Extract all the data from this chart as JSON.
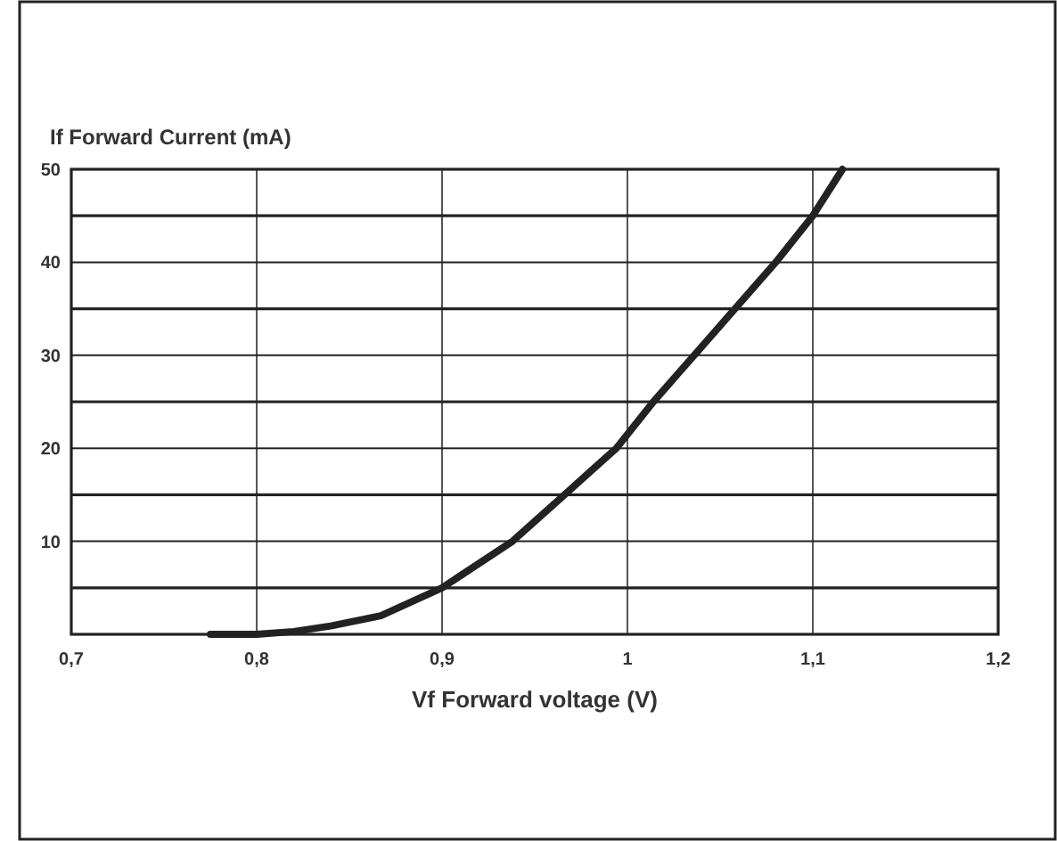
{
  "chart_data": {
    "type": "line",
    "xlabel": "Vf Forward voltage (V)",
    "ylabel": "If Forward Current (mA)",
    "series": [
      {
        "color": "#222222",
        "x": [
          0.775,
          0.8,
          0.82,
          0.84,
          0.867,
          0.9,
          0.938,
          0.952,
          0.966,
          0.98,
          0.994,
          1.014,
          1.036,
          1.058,
          1.08,
          1.1,
          1.116
        ],
        "values": [
          0,
          0,
          0.3,
          0.9,
          2,
          5,
          10,
          12.5,
          15,
          17.5,
          20,
          25,
          30,
          35,
          40,
          45,
          50
        ]
      }
    ],
    "xlim": [
      0.7,
      1.2
    ],
    "xticks": [
      {
        "value": 0.7,
        "label": "0,7"
      },
      {
        "value": 0.8,
        "label": "0,8"
      },
      {
        "value": 0.9,
        "label": "0,9"
      },
      1,
      {
        "value": 1.1,
        "label": "1,1"
      },
      {
        "value": 1.2,
        "label": "1,2"
      }
    ],
    "ylim": [
      0,
      50
    ],
    "yticks": [
      {
        "value": 0,
        "label": null
      },
      {
        "value": 5,
        "label": null
      },
      10,
      {
        "value": 15,
        "label": null
      },
      20,
      {
        "value": 25,
        "label": null
      },
      30,
      {
        "value": 35,
        "label": null
      },
      40,
      {
        "value": 45,
        "label": null
      },
      50
    ],
    "grid": true,
    "marker": "none",
    "line_style": "solid"
  }
}
